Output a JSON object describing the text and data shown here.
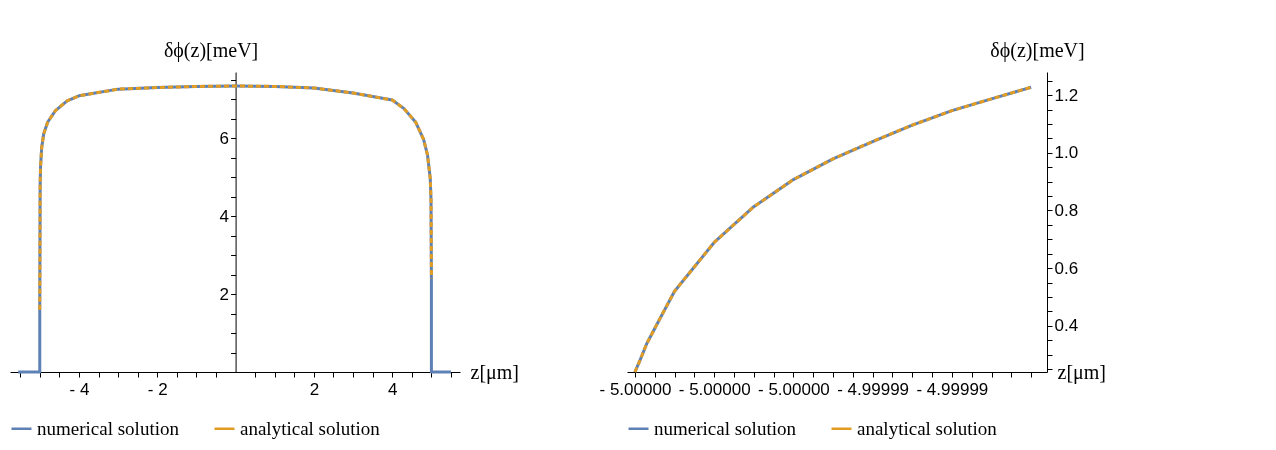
{
  "chart_data": [
    {
      "type": "line",
      "xlabel": "z[μm]",
      "ylabel": "δϕ(z)[meV]",
      "xlim": [
        -5.76,
        5.73
      ],
      "ylim": [
        0,
        7.7
      ],
      "grid": false,
      "legend": "bottom",
      "xticks": [
        {
          "value": -5.5,
          "label": null
        },
        {
          "value": -5,
          "label": null
        },
        {
          "value": -4.5,
          "label": null
        },
        {
          "value": -4,
          "label": "- 4"
        },
        {
          "value": -3.5,
          "label": null
        },
        {
          "value": -3,
          "label": null
        },
        {
          "value": -2.5,
          "label": null
        },
        {
          "value": -2,
          "label": "- 2"
        },
        {
          "value": -1.5,
          "label": null
        },
        {
          "value": -1,
          "label": null
        },
        {
          "value": -0.5,
          "label": null
        },
        {
          "value": 0.5,
          "label": null
        },
        {
          "value": 1,
          "label": null
        },
        {
          "value": 1.5,
          "label": null
        },
        {
          "value": 2,
          "label": "2"
        },
        {
          "value": 2.5,
          "label": null
        },
        {
          "value": 3,
          "label": null
        },
        {
          "value": 3.5,
          "label": null
        },
        {
          "value": 4,
          "label": "4"
        },
        {
          "value": 4.5,
          "label": null
        },
        {
          "value": 5,
          "label": null
        },
        {
          "value": 5.5,
          "label": null
        }
      ],
      "yticks": [
        {
          "value": 0.5,
          "label": null
        },
        {
          "value": 1,
          "label": null
        },
        {
          "value": 1.5,
          "label": null
        },
        {
          "value": 2,
          "label": "2"
        },
        {
          "value": 2.5,
          "label": null
        },
        {
          "value": 3,
          "label": null
        },
        {
          "value": 3.5,
          "label": null
        },
        {
          "value": 4,
          "label": "4"
        },
        {
          "value": 4.5,
          "label": null
        },
        {
          "value": 5,
          "label": null
        },
        {
          "value": 5.5,
          "label": null
        },
        {
          "value": 6,
          "label": "6"
        },
        {
          "value": 6.5,
          "label": null
        },
        {
          "value": 7,
          "label": null
        },
        {
          "value": 7.5,
          "label": null
        }
      ],
      "series": [
        {
          "name": "numerical solution",
          "color": "#5e81b5",
          "line_style": "solid",
          "x": [
            -5.55,
            -5.0,
            -5.0,
            -4.99,
            -4.98,
            -4.95,
            -4.9,
            -4.8,
            -4.6,
            -4.3,
            -4,
            -3,
            -2,
            -1,
            0,
            1,
            2,
            3,
            4,
            4.3,
            4.6,
            4.8,
            4.9,
            4.97,
            4.99,
            5.0,
            5.0,
            5.5
          ],
          "values": [
            0,
            0,
            1.6,
            4.8,
            5.27,
            5.77,
            6.11,
            6.41,
            6.71,
            6.96,
            7.09,
            7.26,
            7.3,
            7.33,
            7.34,
            7.33,
            7.29,
            7.16,
            6.98,
            6.76,
            6.41,
            5.97,
            5.57,
            4.97,
            4.4,
            2.4,
            0,
            0
          ]
        },
        {
          "name": "analytical solution",
          "color": "#e19c24",
          "line_style": "dashed",
          "x": [
            -5.0,
            -4.99,
            -4.98,
            -4.95,
            -4.9,
            -4.8,
            -4.6,
            -4.3,
            -4,
            -3,
            -2,
            -1,
            0,
            1,
            2,
            3,
            4,
            4.3,
            4.6,
            4.8,
            4.9,
            4.97,
            4.99,
            5.0
          ],
          "values": [
            1.6,
            4.8,
            5.27,
            5.77,
            6.11,
            6.41,
            6.71,
            6.96,
            7.09,
            7.26,
            7.3,
            7.33,
            7.34,
            7.33,
            7.29,
            7.16,
            6.98,
            6.76,
            6.41,
            5.97,
            5.57,
            4.97,
            4.4,
            2.4
          ]
        }
      ]
    },
    {
      "type": "line",
      "xlabel": "z[μm]",
      "ylabel": "δϕ(z)[meV]",
      "xlim": [
        -5.0000002,
        -4.9999896
      ],
      "ylim": [
        0.24,
        1.28
      ],
      "grid": false,
      "legend": "bottom",
      "xticks": [
        {
          "value": -5.0,
          "label": "- 5.00000"
        },
        {
          "value": -4.9999995,
          "label": null
        },
        {
          "value": -4.999999,
          "label": null
        },
        {
          "value": -4.9999985,
          "label": null
        },
        {
          "value": -4.999998,
          "label": "- 5.00000"
        },
        {
          "value": -4.9999975,
          "label": null
        },
        {
          "value": -4.999997,
          "label": null
        },
        {
          "value": -4.9999965,
          "label": null
        },
        {
          "value": -4.999996,
          "label": "- 5.00000"
        },
        {
          "value": -4.9999955,
          "label": null
        },
        {
          "value": -4.999995,
          "label": null
        },
        {
          "value": -4.9999945,
          "label": null
        },
        {
          "value": -4.999994,
          "label": "- 4.99999"
        },
        {
          "value": -4.9999935,
          "label": null
        },
        {
          "value": -4.999993,
          "label": null
        },
        {
          "value": -4.9999925,
          "label": null
        },
        {
          "value": -4.999992,
          "label": "- 4.99999"
        },
        {
          "value": -4.9999915,
          "label": null
        },
        {
          "value": -4.999991,
          "label": null
        },
        {
          "value": -4.9999905,
          "label": null
        },
        {
          "value": -4.99999,
          "label": null
        }
      ],
      "yticks": [
        {
          "value": 0.25,
          "label": null
        },
        {
          "value": 0.3,
          "label": null
        },
        {
          "value": 0.35,
          "label": null
        },
        {
          "value": 0.4,
          "label": "0.4"
        },
        {
          "value": 0.45,
          "label": null
        },
        {
          "value": 0.5,
          "label": null
        },
        {
          "value": 0.55,
          "label": null
        },
        {
          "value": 0.6,
          "label": "0.6"
        },
        {
          "value": 0.65,
          "label": null
        },
        {
          "value": 0.7,
          "label": null
        },
        {
          "value": 0.75,
          "label": null
        },
        {
          "value": 0.8,
          "label": "0.8"
        },
        {
          "value": 0.85,
          "label": null
        },
        {
          "value": 0.9,
          "label": null
        },
        {
          "value": 0.95,
          "label": null
        },
        {
          "value": 1.0,
          "label": "1.0"
        },
        {
          "value": 1.05,
          "label": null
        },
        {
          "value": 1.1,
          "label": null
        },
        {
          "value": 1.15,
          "label": null
        },
        {
          "value": 1.2,
          "label": "1.2"
        },
        {
          "value": 1.25,
          "label": null
        }
      ],
      "series": [
        {
          "name": "numerical solution",
          "color": "#5e81b5",
          "line_style": "solid",
          "x": [
            -5.0,
            -4.99999987,
            -4.9999997,
            -4.9999994,
            -4.999999,
            -4.999998,
            -4.999997,
            -4.999996,
            -4.999995,
            -4.999994,
            -4.999993,
            -4.999992,
            -4.999991,
            -4.99999
          ],
          "values": [
            0.24,
            0.281,
            0.339,
            0.417,
            0.52,
            0.689,
            0.813,
            0.907,
            0.979,
            1.039,
            1.096,
            1.146,
            1.187,
            1.227
          ]
        },
        {
          "name": "analytical solution",
          "color": "#e19c24",
          "line_style": "dashed",
          "x": [
            -5.0,
            -4.99999987,
            -4.9999997,
            -4.9999994,
            -4.999999,
            -4.999998,
            -4.999997,
            -4.999996,
            -4.999995,
            -4.999994,
            -4.999993,
            -4.999992,
            -4.999991,
            -4.99999
          ],
          "values": [
            0.24,
            0.281,
            0.339,
            0.417,
            0.52,
            0.689,
            0.813,
            0.907,
            0.979,
            1.039,
            1.096,
            1.146,
            1.187,
            1.227
          ]
        }
      ]
    }
  ]
}
